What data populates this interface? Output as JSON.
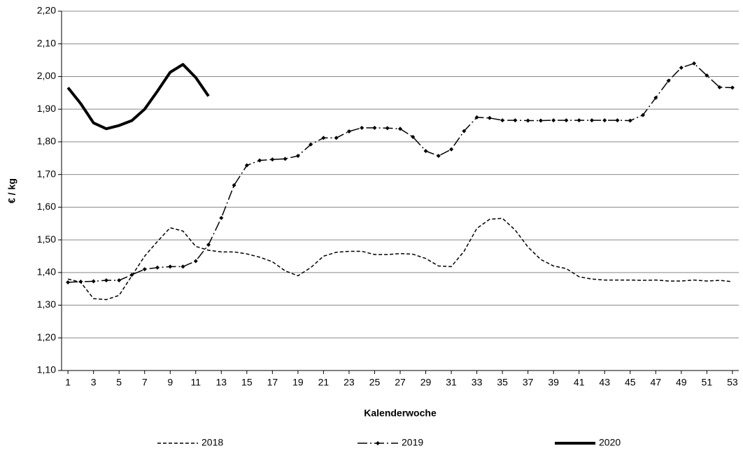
{
  "chart_data": {
    "type": "line",
    "x_label": "Kalenderwoche",
    "y_label": "€ / kg",
    "x": [
      1,
      2,
      3,
      4,
      5,
      6,
      7,
      8,
      9,
      10,
      11,
      12,
      13,
      14,
      15,
      16,
      17,
      18,
      19,
      20,
      21,
      22,
      23,
      24,
      25,
      26,
      27,
      28,
      29,
      30,
      31,
      32,
      33,
      34,
      35,
      36,
      37,
      38,
      39,
      40,
      41,
      42,
      43,
      44,
      45,
      46,
      47,
      48,
      49,
      50,
      51,
      52,
      53
    ],
    "xlim": [
      0.5,
      53.5
    ],
    "xticks": [
      1,
      3,
      5,
      7,
      9,
      11,
      13,
      15,
      17,
      19,
      21,
      23,
      25,
      27,
      29,
      31,
      33,
      35,
      37,
      39,
      41,
      43,
      45,
      47,
      49,
      51,
      53
    ],
    "ylim": [
      1.1,
      2.2
    ],
    "yticks": [
      {
        "value": 1.1,
        "label": "1,10"
      },
      {
        "value": 1.2,
        "label": "1,20"
      },
      {
        "value": 1.3,
        "label": "1,30"
      },
      {
        "value": 1.4,
        "label": "1,40"
      },
      {
        "value": 1.5,
        "label": "1,50"
      },
      {
        "value": 1.6,
        "label": "1,60"
      },
      {
        "value": 1.7,
        "label": "1,70"
      },
      {
        "value": 1.8,
        "label": "1,80"
      },
      {
        "value": 1.9,
        "label": "1,90"
      },
      {
        "value": 2.0,
        "label": "2,00"
      },
      {
        "value": 2.1,
        "label": "2,10"
      },
      {
        "value": 2.2,
        "label": "2,20"
      }
    ],
    "grid": true,
    "legend": "bottom",
    "series": [
      {
        "name": "2018",
        "color": "#000000",
        "dash": "dashed",
        "width": 1.5,
        "values": [
          1.38,
          1.37,
          1.32,
          1.317,
          1.33,
          1.39,
          1.45,
          1.495,
          1.537,
          1.527,
          1.48,
          1.468,
          1.463,
          1.463,
          1.457,
          1.447,
          1.433,
          1.405,
          1.39,
          1.415,
          1.45,
          1.462,
          1.465,
          1.465,
          1.455,
          1.455,
          1.458,
          1.456,
          1.443,
          1.42,
          1.418,
          1.465,
          1.535,
          1.563,
          1.566,
          1.53,
          1.478,
          1.44,
          1.42,
          1.412,
          1.387,
          1.38,
          1.377,
          1.377,
          1.377,
          1.376,
          1.377,
          1.374,
          1.374,
          1.377,
          1.374,
          1.376,
          1.372
        ]
      },
      {
        "name": "2019",
        "color": "#000000",
        "dash": "dashdot",
        "width": 1.5,
        "marker": "diamond",
        "values": [
          1.37,
          1.372,
          1.373,
          1.376,
          1.376,
          1.393,
          1.41,
          1.415,
          1.418,
          1.418,
          1.435,
          1.485,
          1.567,
          1.667,
          1.728,
          1.743,
          1.746,
          1.748,
          1.757,
          1.792,
          1.812,
          1.812,
          1.832,
          1.843,
          1.843,
          1.842,
          1.84,
          1.815,
          1.772,
          1.757,
          1.777,
          1.833,
          1.875,
          1.873,
          1.866,
          1.866,
          1.865,
          1.865,
          1.866,
          1.866,
          1.866,
          1.866,
          1.866,
          1.866,
          1.865,
          1.882,
          1.935,
          1.987,
          2.027,
          2.04,
          2.003,
          1.967,
          1.966
        ]
      },
      {
        "name": "2020",
        "color": "#000000",
        "dash": "solid",
        "width": 4,
        "values": [
          1.966,
          1.917,
          1.858,
          1.84,
          1.85,
          1.865,
          1.9,
          1.955,
          2.013,
          2.037,
          1.997,
          1.94,
          null,
          null,
          null,
          null,
          null,
          null,
          null,
          null,
          null,
          null,
          null,
          null,
          null,
          null,
          null,
          null,
          null,
          null,
          null,
          null,
          null,
          null,
          null,
          null,
          null,
          null,
          null,
          null,
          null,
          null,
          null,
          null,
          null,
          null,
          null,
          null,
          null,
          null,
          null,
          null,
          null
        ]
      }
    ]
  }
}
